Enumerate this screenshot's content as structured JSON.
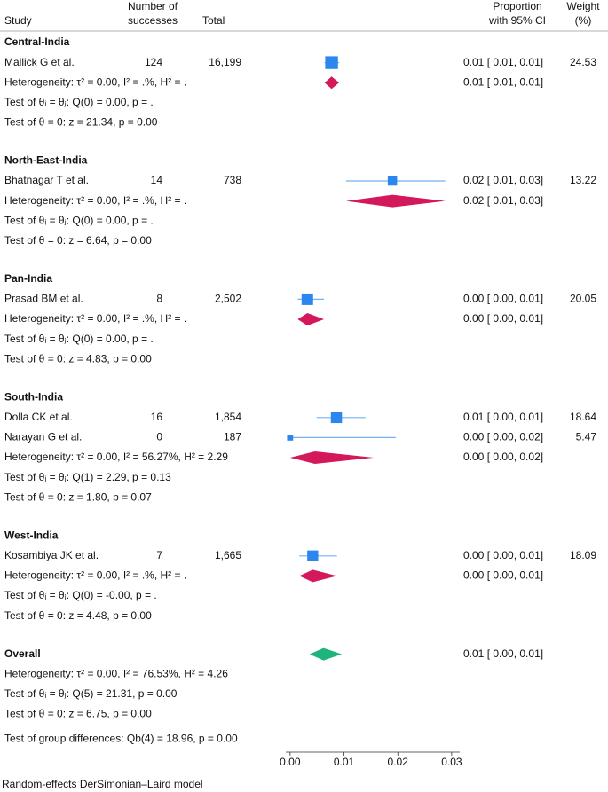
{
  "chart_data": {
    "type": "forest",
    "columns": {
      "study": "Study",
      "successes": [
        "Number of",
        "successes"
      ],
      "total": "Total",
      "ci": [
        "Proportion",
        "with 95% CI"
      ],
      "weight": [
        "Weight",
        "(%)"
      ]
    },
    "xlim": [
      -0.0008,
      0.0315
    ],
    "xticks": [
      {
        "value": 0,
        "label": "0.00"
      },
      {
        "value": 0.01,
        "label": "0.01"
      },
      {
        "value": 0.02,
        "label": "0.02"
      },
      {
        "value": 0.03,
        "label": "0.03"
      }
    ],
    "study_color": "#2b86ee",
    "ci_color": "#72b2f4",
    "summary_color": "#d4185c",
    "overall_color": "#1db57c",
    "groups": [
      {
        "name": "Central-India",
        "studies": [
          {
            "name": "Mallick G et al.",
            "successes": 124,
            "total": {
              "value": 16199,
              "label": "16,199"
            },
            "estimate": 0.0077,
            "ci": [
              0.0064,
              0.0091
            ],
            "label": "0.01 [ 0.01, 0.01]",
            "weight": 24.53
          }
        ],
        "summary": {
          "estimate": 0.0077,
          "ci": [
            0.0064,
            0.0091
          ],
          "label": "0.01 [ 0.01, 0.01]"
        },
        "heterogeneity": "Heterogeneity: τ² = 0.00, I² = .%, H² = .",
        "homogeneity_test": "Test of θᵢ = θⱼ: Q(0) = 0.00, p = .",
        "effect_test": "Test of θ = 0: z = 21.34, p = 0.00"
      },
      {
        "name": "North-East-India",
        "studies": [
          {
            "name": "Bhatnagar T et al.",
            "successes": 14,
            "total": 738,
            "estimate": 0.019,
            "ci": [
              0.0104,
              0.0288
            ],
            "label": "0.02 [ 0.01, 0.03]",
            "weight": 13.22
          }
        ],
        "summary": {
          "estimate": 0.019,
          "ci": [
            0.0104,
            0.0288
          ],
          "label": "0.02 [ 0.01, 0.03]"
        },
        "heterogeneity": "Heterogeneity: τ² = 0.00, I² = .%, H² = .",
        "homogeneity_test": "Test of θᵢ = θⱼ: Q(0) = 0.00, p = .",
        "effect_test": "Test of θ = 0: z = 6.64, p = 0.00"
      },
      {
        "name": "Pan-India",
        "studies": [
          {
            "name": "Prasad BM et al.",
            "successes": 8,
            "total": {
              "value": 2502,
              "label": "2,502"
            },
            "estimate": 0.0032,
            "ci": [
              0.0014,
              0.0063
            ],
            "label": "0.00 [ 0.00, 0.01]",
            "weight": 20.05
          }
        ],
        "summary": {
          "estimate": 0.0032,
          "ci": [
            0.0014,
            0.0063
          ],
          "label": "0.00 [ 0.00, 0.01]"
        },
        "heterogeneity": "Heterogeneity: τ² = 0.00, I² = .%, H² = .",
        "homogeneity_test": "Test of θᵢ = θⱼ: Q(0) = 0.00, p = .",
        "effect_test": "Test of θ = 0: z = 4.83, p = 0.00"
      },
      {
        "name": "South-India",
        "studies": [
          {
            "name": "Dolla CK et al.",
            "successes": 16,
            "total": {
              "value": 1854,
              "label": "1,854"
            },
            "estimate": 0.0086,
            "ci": [
              0.0049,
              0.014
            ],
            "label": "0.01 [ 0.00, 0.01]",
            "weight": 18.64
          },
          {
            "name": "Narayan G et al.",
            "successes": 0,
            "total": 187,
            "estimate": 0,
            "ci": [
              0,
              0.0196
            ],
            "label": "0.00 [ 0.00, 0.02]",
            "weight": 5.47
          }
        ],
        "summary": {
          "estimate": 0.0046,
          "ci": [
            0,
            0.0155
          ],
          "label": "0.00 [ 0.00, 0.02]"
        },
        "heterogeneity": "Heterogeneity: τ² = 0.00, I² = 56.27%, H² = 2.29",
        "homogeneity_test": "Test of θᵢ = θⱼ: Q(1) = 2.29, p = 0.13",
        "effect_test": "Test of θ = 0: z = 1.80, p = 0.07"
      },
      {
        "name": "West-India",
        "studies": [
          {
            "name": "Kosambiya JK et al.",
            "successes": 7,
            "total": {
              "value": 1665,
              "label": "1,665"
            },
            "estimate": 0.0042,
            "ci": [
              0.0017,
              0.0087
            ],
            "label": "0.00 [ 0.00, 0.01]",
            "weight": 18.09
          }
        ],
        "summary": {
          "estimate": 0.0042,
          "ci": [
            0.0017,
            0.0087
          ],
          "label": "0.00 [ 0.00, 0.01]"
        },
        "heterogeneity": "Heterogeneity: τ² = 0.00, I² = .%, H² = .",
        "homogeneity_test": "Test of θᵢ = θⱼ: Q(0) = -0.00, p = .",
        "effect_test": "Test of θ = 0: z = 4.48, p = 0.00"
      }
    ],
    "overall": {
      "name": "Overall",
      "summary": {
        "estimate": 0.0062,
        "ci": [
          0.0036,
          0.0096
        ],
        "label": "0.01 [ 0.00, 0.01]"
      },
      "heterogeneity": "Heterogeneity: τ² = 0.00, I² = 76.53%, H² = 4.26",
      "homogeneity_test": "Test of θᵢ = θⱼ: Q(5) = 21.31, p = 0.00",
      "effect_test": "Test of θ = 0: z = 6.75, p = 0.00"
    },
    "group_test": "Test of group differences: Qb(4) = 18.96, p = 0.00",
    "footnote": "Random-effects DerSimonian–Laird model"
  }
}
